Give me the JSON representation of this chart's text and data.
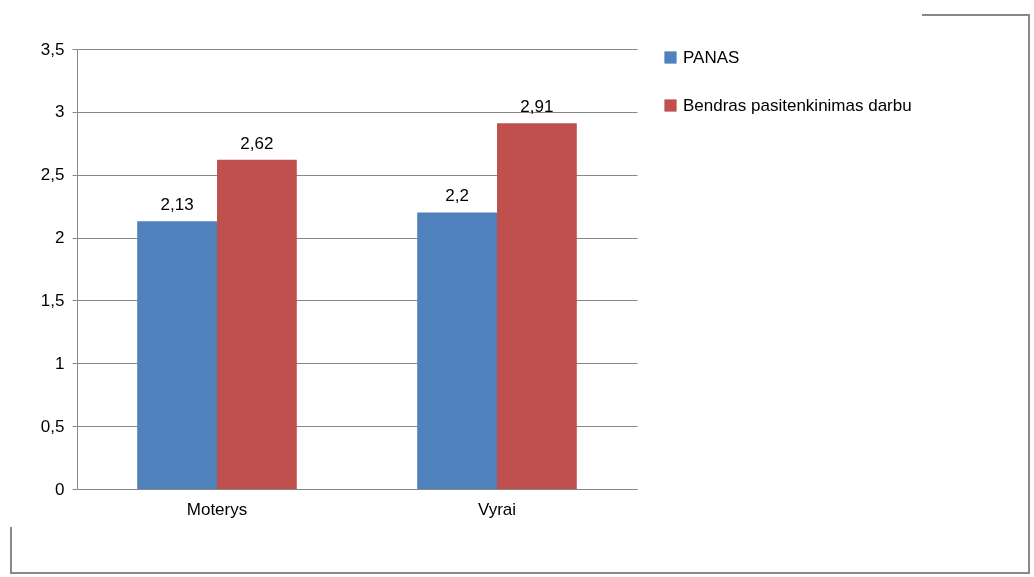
{
  "chart_data": {
    "type": "bar",
    "categories": [
      "Moterys",
      "Vyrai"
    ],
    "series": [
      {
        "name": "PANAS",
        "color": "#4f81bd",
        "values": [
          2.13,
          2.2
        ],
        "value_labels": [
          "2,13",
          "2,2"
        ]
      },
      {
        "name": "Bendras pasitenkinimas darbu",
        "color": "#c0504d",
        "values": [
          2.62,
          2.91
        ],
        "value_labels": [
          "2,62",
          "2,91"
        ]
      }
    ],
    "ylim": [
      0,
      3.5
    ],
    "yticks": [
      0,
      {
        "value": 0.5,
        "label": "0,5"
      },
      1,
      {
        "value": 1.5,
        "label": "1,5"
      },
      2,
      {
        "value": 2.5,
        "label": "2,5"
      },
      3,
      {
        "value": 3.5,
        "label": "3,5"
      }
    ],
    "grid": "y",
    "legend": "right"
  }
}
